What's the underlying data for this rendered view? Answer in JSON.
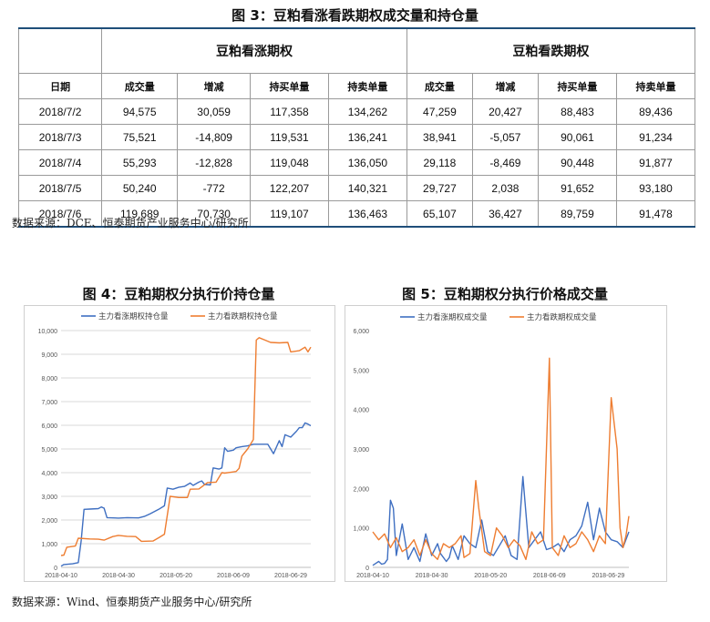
{
  "table": {
    "title": "图 3：豆粕看涨看跌期权成交量和持仓量",
    "group_call": "豆粕看涨期权",
    "group_put": "豆粕看跌期权",
    "headers": [
      "日期",
      "成交量",
      "增减",
      "持买单量",
      "持卖单量",
      "成交量",
      "增减",
      "持买单量",
      "持卖单量"
    ],
    "rows": [
      [
        "2018/7/2",
        "94,575",
        "30,059",
        "117,358",
        "134,262",
        "47,259",
        "20,427",
        "88,483",
        "89,436"
      ],
      [
        "2018/7/3",
        "75,521",
        "-14,809",
        "119,531",
        "136,241",
        "38,941",
        "-5,057",
        "90,061",
        "91,234"
      ],
      [
        "2018/7/4",
        "55,293",
        "-12,828",
        "119,048",
        "136,050",
        "29,118",
        "-8,469",
        "90,448",
        "91,877"
      ],
      [
        "2018/7/5",
        "50,240",
        "-772",
        "122,207",
        "140,321",
        "29,727",
        "2,038",
        "91,652",
        "93,180"
      ],
      [
        "2018/7/6",
        "119,689",
        "70,730",
        "119,107",
        "136,463",
        "65,107",
        "36,427",
        "89,759",
        "91,478"
      ]
    ],
    "source": "数据来源：DCE、恒泰期货产业服务中心/研究所"
  },
  "bottom_source": "数据来源：Wind、恒泰期货产业服务中心/研究所",
  "colors": {
    "call": "#3f6fc1",
    "put": "#ee7d31",
    "grid": "#d9d9d9",
    "rule": "#1f4e79"
  },
  "chart_data": [
    {
      "type": "line",
      "title": "图 4：豆粕期权分执行价持仓量",
      "xlabel": "",
      "ylabel": "",
      "ylim": [
        0,
        10000
      ],
      "yticks": [
        0,
        1000,
        2000,
        3000,
        4000,
        5000,
        6000,
        7000,
        8000,
        9000,
        10000
      ],
      "xlim": [
        "2018-04-10",
        "2018-07-06"
      ],
      "xticks": [
        "2018-04-10",
        "2018-04-30",
        "2018-05-20",
        "2018-06-09",
        "2018-06-29"
      ],
      "grid": true,
      "legend": "top-left",
      "series": [
        {
          "name": "主力看涨期权持仓量",
          "color": "#3f6fc1",
          "points": [
            [
              "2018-04-10",
              50
            ],
            [
              "2018-04-11",
              120
            ],
            [
              "2018-04-14",
              150
            ],
            [
              "2018-04-16",
              200
            ],
            [
              "2018-04-17",
              1100
            ],
            [
              "2018-04-18",
              2450
            ],
            [
              "2018-04-20",
              2460
            ],
            [
              "2018-04-23",
              2480
            ],
            [
              "2018-04-24",
              2550
            ],
            [
              "2018-04-25",
              2500
            ],
            [
              "2018-04-26",
              2100
            ],
            [
              "2018-04-30",
              2080
            ],
            [
              "2018-05-03",
              2100
            ],
            [
              "2018-05-07",
              2090
            ],
            [
              "2018-05-09",
              2150
            ],
            [
              "2018-05-11",
              2260
            ],
            [
              "2018-05-14",
              2450
            ],
            [
              "2018-05-16",
              2600
            ],
            [
              "2018-05-17",
              3350
            ],
            [
              "2018-05-19",
              3300
            ],
            [
              "2018-05-21",
              3380
            ],
            [
              "2018-05-23",
              3420
            ],
            [
              "2018-05-25",
              3560
            ],
            [
              "2018-05-26",
              3460
            ],
            [
              "2018-05-28",
              3600
            ],
            [
              "2018-05-29",
              3650
            ],
            [
              "2018-05-30",
              3500
            ],
            [
              "2018-06-01",
              3480
            ],
            [
              "2018-06-02",
              4200
            ],
            [
              "2018-06-04",
              4150
            ],
            [
              "2018-06-05",
              4200
            ],
            [
              "2018-06-06",
              5050
            ],
            [
              "2018-06-07",
              4900
            ],
            [
              "2018-06-09",
              4950
            ],
            [
              "2018-06-10",
              5050
            ],
            [
              "2018-06-12",
              5100
            ],
            [
              "2018-06-14",
              5130
            ],
            [
              "2018-06-16",
              5200
            ],
            [
              "2018-06-19",
              5200
            ],
            [
              "2018-06-21",
              5200
            ],
            [
              "2018-06-23",
              4800
            ],
            [
              "2018-06-25",
              5350
            ],
            [
              "2018-06-26",
              5100
            ],
            [
              "2018-06-27",
              5600
            ],
            [
              "2018-06-29",
              5500
            ],
            [
              "2018-07-01",
              5750
            ],
            [
              "2018-07-02",
              5900
            ],
            [
              "2018-07-03",
              5900
            ],
            [
              "2018-07-04",
              6100
            ],
            [
              "2018-07-05",
              6050
            ],
            [
              "2018-07-06",
              5980
            ]
          ]
        },
        {
          "name": "主力看跌期权持仓量",
          "color": "#ee7d31",
          "points": [
            [
              "2018-04-10",
              500
            ],
            [
              "2018-04-11",
              520
            ],
            [
              "2018-04-12",
              850
            ],
            [
              "2018-04-15",
              900
            ],
            [
              "2018-04-16",
              1230
            ],
            [
              "2018-04-20",
              1200
            ],
            [
              "2018-04-23",
              1190
            ],
            [
              "2018-04-25",
              1150
            ],
            [
              "2018-04-28",
              1300
            ],
            [
              "2018-04-30",
              1350
            ],
            [
              "2018-05-03",
              1310
            ],
            [
              "2018-05-06",
              1300
            ],
            [
              "2018-05-08",
              1100
            ],
            [
              "2018-05-12",
              1110
            ],
            [
              "2018-05-14",
              1250
            ],
            [
              "2018-05-16",
              1400
            ],
            [
              "2018-05-18",
              3000
            ],
            [
              "2018-05-21",
              2950
            ],
            [
              "2018-05-24",
              2950
            ],
            [
              "2018-05-25",
              3300
            ],
            [
              "2018-05-28",
              3310
            ],
            [
              "2018-05-31",
              3580
            ],
            [
              "2018-06-03",
              3600
            ],
            [
              "2018-06-05",
              4000
            ],
            [
              "2018-06-06",
              3980
            ],
            [
              "2018-06-10",
              4050
            ],
            [
              "2018-06-11",
              4180
            ],
            [
              "2018-06-12",
              4700
            ],
            [
              "2018-06-14",
              5000
            ],
            [
              "2018-06-16",
              5400
            ],
            [
              "2018-06-17",
              9600
            ],
            [
              "2018-06-18",
              9700
            ],
            [
              "2018-06-20",
              9600
            ],
            [
              "2018-06-22",
              9500
            ],
            [
              "2018-06-25",
              9480
            ],
            [
              "2018-06-28",
              9500
            ],
            [
              "2018-06-29",
              9100
            ],
            [
              "2018-07-02",
              9150
            ],
            [
              "2018-07-04",
              9300
            ],
            [
              "2018-07-05",
              9100
            ],
            [
              "2018-07-06",
              9300
            ]
          ]
        }
      ]
    },
    {
      "type": "line",
      "title": "图 5：豆粕期权分执行价格成交量",
      "xlabel": "",
      "ylabel": "",
      "ylim": [
        0,
        6000
      ],
      "yticks": [
        0,
        1000,
        2000,
        3000,
        4000,
        5000,
        6000
      ],
      "xlim": [
        "2018-04-10",
        "2018-07-06"
      ],
      "xticks": [
        "2018-04-10",
        "2018-04-30",
        "2018-05-20",
        "2018-06-09",
        "2018-06-29"
      ],
      "grid": false,
      "legend": "top-left",
      "series": [
        {
          "name": "主力看涨期权成交量",
          "color": "#3f6fc1",
          "points": [
            [
              "2018-04-10",
              50
            ],
            [
              "2018-04-11",
              100
            ],
            [
              "2018-04-12",
              150
            ],
            [
              "2018-04-13",
              80
            ],
            [
              "2018-04-14",
              100
            ],
            [
              "2018-04-15",
              200
            ],
            [
              "2018-04-16",
              1700
            ],
            [
              "2018-04-17",
              1500
            ],
            [
              "2018-04-18",
              300
            ],
            [
              "2018-04-20",
              1100
            ],
            [
              "2018-04-22",
              200
            ],
            [
              "2018-04-24",
              500
            ],
            [
              "2018-04-26",
              150
            ],
            [
              "2018-04-28",
              850
            ],
            [
              "2018-04-30",
              300
            ],
            [
              "2018-05-02",
              600
            ],
            [
              "2018-05-03",
              350
            ],
            [
              "2018-05-05",
              150
            ],
            [
              "2018-05-06",
              250
            ],
            [
              "2018-05-07",
              550
            ],
            [
              "2018-05-09",
              200
            ],
            [
              "2018-05-11",
              800
            ],
            [
              "2018-05-13",
              600
            ],
            [
              "2018-05-15",
              500
            ],
            [
              "2018-05-17",
              1200
            ],
            [
              "2018-05-19",
              400
            ],
            [
              "2018-05-21",
              300
            ],
            [
              "2018-05-23",
              550
            ],
            [
              "2018-05-25",
              800
            ],
            [
              "2018-05-27",
              300
            ],
            [
              "2018-05-29",
              200
            ],
            [
              "2018-05-31",
              2300
            ],
            [
              "2018-06-02",
              500
            ],
            [
              "2018-06-04",
              700
            ],
            [
              "2018-06-06",
              900
            ],
            [
              "2018-06-08",
              450
            ],
            [
              "2018-06-10",
              500
            ],
            [
              "2018-06-12",
              600
            ],
            [
              "2018-06-14",
              400
            ],
            [
              "2018-06-16",
              700
            ],
            [
              "2018-06-18",
              800
            ],
            [
              "2018-06-20",
              1050
            ],
            [
              "2018-06-22",
              1650
            ],
            [
              "2018-06-24",
              700
            ],
            [
              "2018-06-26",
              1500
            ],
            [
              "2018-06-28",
              900
            ],
            [
              "2018-06-30",
              700
            ],
            [
              "2018-07-02",
              650
            ],
            [
              "2018-07-04",
              500
            ],
            [
              "2018-07-06",
              900
            ]
          ]
        },
        {
          "name": "主力看跌期权成交量",
          "color": "#ee7d31",
          "points": [
            [
              "2018-04-10",
              900
            ],
            [
              "2018-04-12",
              700
            ],
            [
              "2018-04-14",
              850
            ],
            [
              "2018-04-16",
              500
            ],
            [
              "2018-04-18",
              750
            ],
            [
              "2018-04-20",
              400
            ],
            [
              "2018-04-22",
              500
            ],
            [
              "2018-04-24",
              700
            ],
            [
              "2018-04-26",
              300
            ],
            [
              "2018-04-28",
              700
            ],
            [
              "2018-04-30",
              350
            ],
            [
              "2018-05-02",
              200
            ],
            [
              "2018-05-04",
              600
            ],
            [
              "2018-05-06",
              500
            ],
            [
              "2018-05-08",
              600
            ],
            [
              "2018-05-10",
              800
            ],
            [
              "2018-05-11",
              250
            ],
            [
              "2018-05-13",
              350
            ],
            [
              "2018-05-15",
              2200
            ],
            [
              "2018-05-16",
              1500
            ],
            [
              "2018-05-18",
              400
            ],
            [
              "2018-05-20",
              300
            ],
            [
              "2018-05-22",
              1000
            ],
            [
              "2018-05-24",
              800
            ],
            [
              "2018-05-26",
              500
            ],
            [
              "2018-05-28",
              700
            ],
            [
              "2018-05-30",
              550
            ],
            [
              "2018-06-01",
              200
            ],
            [
              "2018-06-03",
              900
            ],
            [
              "2018-06-05",
              600
            ],
            [
              "2018-06-07",
              700
            ],
            [
              "2018-06-09",
              5300
            ],
            [
              "2018-06-10",
              500
            ],
            [
              "2018-06-12",
              300
            ],
            [
              "2018-06-14",
              800
            ],
            [
              "2018-06-16",
              500
            ],
            [
              "2018-06-18",
              600
            ],
            [
              "2018-06-20",
              900
            ],
            [
              "2018-06-22",
              700
            ],
            [
              "2018-06-24",
              400
            ],
            [
              "2018-06-26",
              800
            ],
            [
              "2018-06-28",
              600
            ],
            [
              "2018-06-30",
              4300
            ],
            [
              "2018-07-02",
              3000
            ],
            [
              "2018-07-03",
              1000
            ],
            [
              "2018-07-04",
              500
            ],
            [
              "2018-07-05",
              800
            ],
            [
              "2018-07-06",
              1300
            ]
          ]
        }
      ]
    }
  ]
}
